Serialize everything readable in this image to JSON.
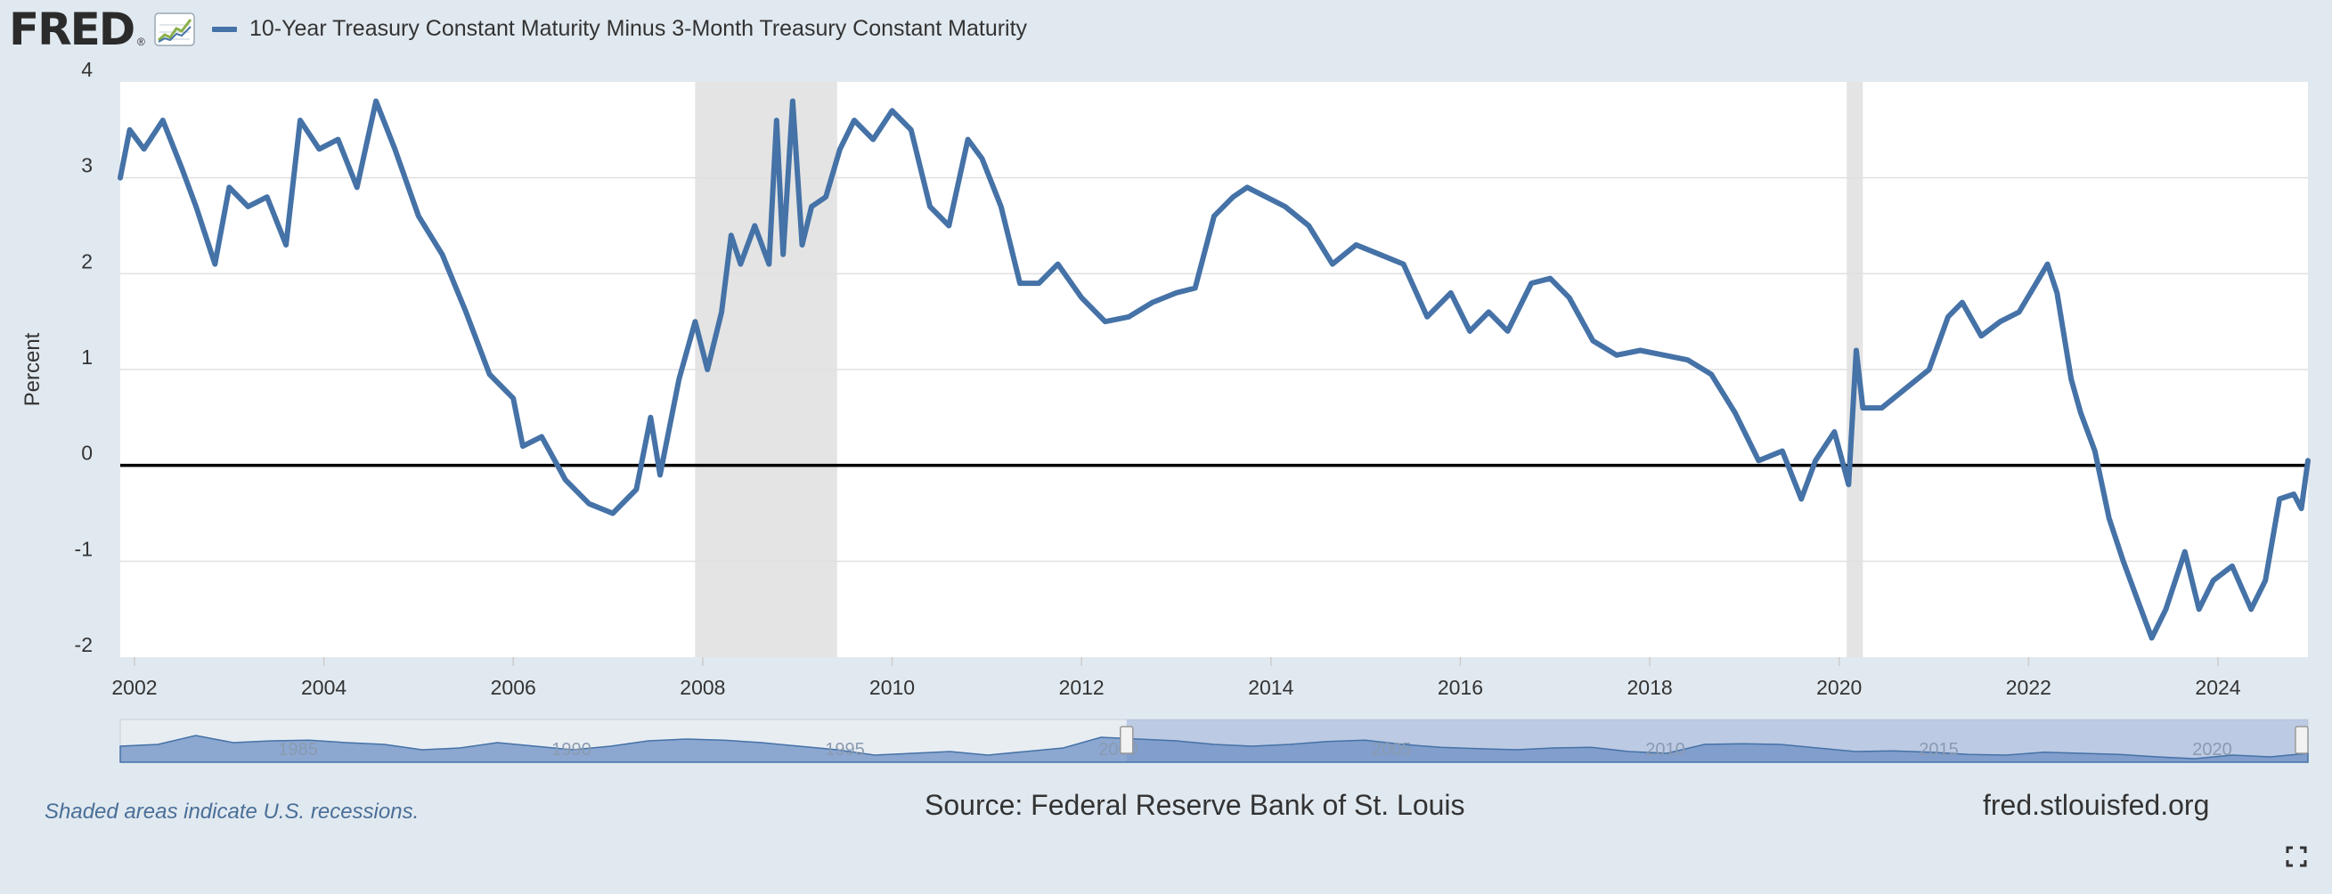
{
  "header": {
    "logo_text": "FRED",
    "logo_mark": "®",
    "logo_icon": "chart-line-icon",
    "legend_label": "10-Year Treasury Constant Maturity Minus 3-Month Treasury Constant Maturity"
  },
  "footer": {
    "recession_note": "Shaded areas indicate U.S. recessions.",
    "source": "Source: Federal Reserve Bank of St. Louis",
    "site": "fred.stlouisfed.org"
  },
  "colors": {
    "series": "#4572a7",
    "recession": "#e4e4e4",
    "background": "#e1e9f0",
    "plot_background": "#ffffff",
    "zero_line": "#000000"
  },
  "chart_data": {
    "type": "line",
    "title": "",
    "xlabel": "",
    "ylabel": "Percent",
    "xlim": [
      2001.85,
      2024.95
    ],
    "ylim": [
      -2,
      4
    ],
    "yticks": [
      -2,
      -1,
      0,
      1,
      2,
      3,
      4
    ],
    "xticks": [
      2002,
      2004,
      2006,
      2008,
      2010,
      2012,
      2014,
      2016,
      2018,
      2020,
      2022,
      2024
    ],
    "grid": true,
    "reference_line": 0,
    "recessions": [
      [
        2007.92,
        2009.42
      ],
      [
        2020.08,
        2020.25
      ]
    ],
    "series": [
      {
        "name": "10-Year Treasury Constant Maturity Minus 3-Month Treasury Constant Maturity",
        "x": [
          2001.85,
          2001.95,
          2002.1,
          2002.3,
          2002.5,
          2002.65,
          2002.85,
          2003.0,
          2003.2,
          2003.4,
          2003.6,
          2003.75,
          2003.95,
          2004.15,
          2004.35,
          2004.55,
          2004.75,
          2005.0,
          2005.25,
          2005.5,
          2005.75,
          2006.0,
          2006.1,
          2006.3,
          2006.55,
          2006.8,
          2007.05,
          2007.3,
          2007.45,
          2007.55,
          2007.75,
          2007.92,
          2008.05,
          2008.2,
          2008.3,
          2008.4,
          2008.55,
          2008.7,
          2008.78,
          2008.85,
          2008.95,
          2009.05,
          2009.15,
          2009.3,
          2009.45,
          2009.6,
          2009.8,
          2010.0,
          2010.2,
          2010.4,
          2010.6,
          2010.8,
          2010.95,
          2011.15,
          2011.35,
          2011.55,
          2011.75,
          2012.0,
          2012.25,
          2012.5,
          2012.75,
          2013.0,
          2013.2,
          2013.4,
          2013.6,
          2013.75,
          2013.95,
          2014.15,
          2014.4,
          2014.65,
          2014.9,
          2015.15,
          2015.4,
          2015.65,
          2015.9,
          2016.1,
          2016.3,
          2016.5,
          2016.75,
          2016.95,
          2017.15,
          2017.4,
          2017.65,
          2017.9,
          2018.15,
          2018.4,
          2018.65,
          2018.9,
          2019.15,
          2019.4,
          2019.6,
          2019.75,
          2019.95,
          2020.1,
          2020.18,
          2020.25,
          2020.45,
          2020.7,
          2020.95,
          2021.15,
          2021.3,
          2021.5,
          2021.7,
          2021.9,
          2022.05,
          2022.2,
          2022.3,
          2022.45,
          2022.55,
          2022.7,
          2022.85,
          2023.0,
          2023.15,
          2023.3,
          2023.45,
          2023.65,
          2023.8,
          2023.95,
          2024.15,
          2024.35,
          2024.5,
          2024.65,
          2024.8,
          2024.88,
          2024.95
        ],
        "y": [
          3.0,
          3.5,
          3.3,
          3.6,
          3.1,
          2.7,
          2.1,
          2.9,
          2.7,
          2.8,
          2.3,
          3.6,
          3.3,
          3.4,
          2.9,
          3.8,
          3.3,
          2.6,
          2.2,
          1.6,
          0.95,
          0.7,
          0.2,
          0.3,
          -0.15,
          -0.4,
          -0.5,
          -0.25,
          0.5,
          -0.1,
          0.9,
          1.5,
          1.0,
          1.6,
          2.4,
          2.1,
          2.5,
          2.1,
          3.6,
          2.2,
          3.8,
          2.3,
          2.7,
          2.8,
          3.3,
          3.6,
          3.4,
          3.7,
          3.5,
          2.7,
          2.5,
          3.4,
          3.2,
          2.7,
          1.9,
          1.9,
          2.1,
          1.75,
          1.5,
          1.55,
          1.7,
          1.8,
          1.85,
          2.6,
          2.8,
          2.9,
          2.8,
          2.7,
          2.5,
          2.1,
          2.3,
          2.2,
          2.1,
          1.55,
          1.8,
          1.4,
          1.6,
          1.4,
          1.9,
          1.95,
          1.75,
          1.3,
          1.15,
          1.2,
          1.15,
          1.1,
          0.95,
          0.55,
          0.05,
          0.15,
          -0.35,
          0.05,
          0.35,
          -0.2,
          1.2,
          0.6,
          0.6,
          0.8,
          1.0,
          1.55,
          1.7,
          1.35,
          1.5,
          1.6,
          1.85,
          2.1,
          1.8,
          0.9,
          0.55,
          0.15,
          -0.55,
          -1.0,
          -1.4,
          -1.8,
          -1.5,
          -0.9,
          -1.5,
          -1.2,
          -1.05,
          -1.5,
          -1.2,
          -0.35,
          -0.3,
          -0.45,
          0.05
        ]
      }
    ]
  },
  "navigator": {
    "tick_labels": [
      "1985",
      "1990",
      "1995",
      "2000",
      "2005",
      "2010",
      "2015",
      "2020"
    ],
    "profile": [
      0.45,
      0.5,
      0.75,
      0.55,
      0.6,
      0.62,
      0.55,
      0.5,
      0.35,
      0.4,
      0.55,
      0.45,
      0.35,
      0.45,
      0.6,
      0.65,
      0.62,
      0.55,
      0.45,
      0.35,
      0.2,
      0.25,
      0.3,
      0.2,
      0.3,
      0.4,
      0.7,
      0.65,
      0.6,
      0.5,
      0.45,
      0.5,
      0.58,
      0.62,
      0.5,
      0.42,
      0.38,
      0.35,
      0.4,
      0.42,
      0.3,
      0.25,
      0.5,
      0.52,
      0.5,
      0.4,
      0.3,
      0.32,
      0.28,
      0.22,
      0.2,
      0.28,
      0.25,
      0.22,
      0.15,
      0.1,
      0.2,
      0.15,
      0.25
    ],
    "selection": [
      0.46,
      1.0
    ]
  }
}
